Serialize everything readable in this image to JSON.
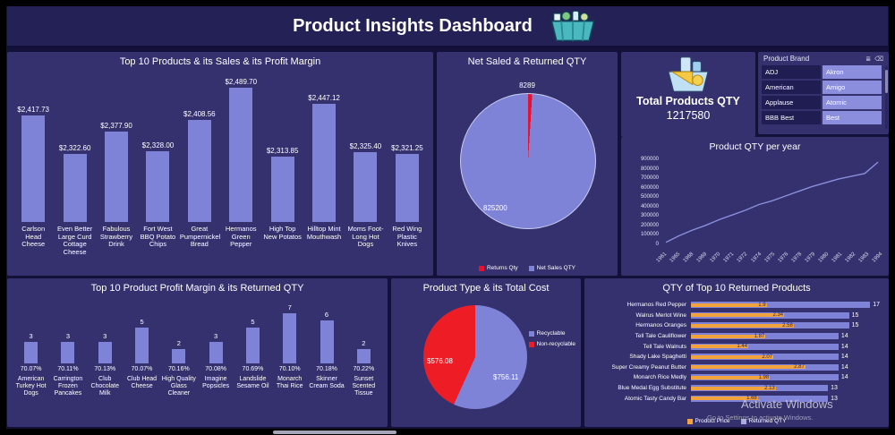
{
  "header": {
    "title": "Product Insights Dashboard"
  },
  "kpi": {
    "label": "Total Products QTY",
    "value": "1217580"
  },
  "slicer": {
    "title": "Product Brand",
    "items": [
      {
        "label": "ADJ",
        "selected": false
      },
      {
        "label": "Akron",
        "selected": true
      },
      {
        "label": "American",
        "selected": false
      },
      {
        "label": "Amigo",
        "selected": true
      },
      {
        "label": "Applause",
        "selected": false
      },
      {
        "label": "Atomic",
        "selected": true
      },
      {
        "label": "BBB Best",
        "selected": false
      },
      {
        "label": "Best",
        "selected": true
      }
    ]
  },
  "watermark": {
    "line1": "Activate Windows",
    "line2": "Go to Settings to activate Windows."
  },
  "colors": {
    "accent_bar": "#7e83d7",
    "red": "#e8112d",
    "orange": "#f2a33c",
    "panel": "#34316e",
    "background": "#13113a"
  },
  "chart_data": [
    {
      "id": "sales-by-product",
      "type": "bar",
      "title": "Top 10 Products & its Sales & its Profit Margin",
      "categories": [
        "Carlson Head Cheese",
        "Even Better Large Curd Cottage Cheese",
        "Fabulous Strawberry Drink",
        "Fort West BBQ Potato Chips",
        "Great Pumpernickel Bread",
        "Hermanos Green Pepper",
        "High Top New Potatos",
        "Hilltop Mint Mouthwash",
        "Moms Foot-Long Hot Dogs",
        "Red Wing Plastic Knives"
      ],
      "values": [
        2417.73,
        2322.6,
        2377.9,
        2328.0,
        2408.56,
        2489.7,
        2313.85,
        2447.12,
        2325.4,
        2321.25
      ],
      "labels": [
        "$2,417.73",
        "$2,322.60",
        "$2,377.90",
        "$2,328.00",
        "$2,408.56",
        "$2,489.70",
        "$2,313.85",
        "$2,447.12",
        "$2,325.40",
        "$2,321.25"
      ],
      "ylim": [
        2150,
        2500
      ],
      "bar_color": "#7e83d7"
    },
    {
      "id": "net-sales-returns",
      "type": "pie",
      "title": "Net Saled & Returned QTY",
      "slices": [
        {
          "label": "Returns Qty",
          "value": 8289,
          "label_text": "8289",
          "color": "#e8112d"
        },
        {
          "label": "Net Sales QTY",
          "value": 825200,
          "label_text": "825200",
          "color": "#7e83d7"
        }
      ],
      "legend": [
        {
          "label": "Returns Qty",
          "color": "#e8112d"
        },
        {
          "label": "Net Sales QTY",
          "color": "#7e83d7"
        }
      ]
    },
    {
      "id": "qty-per-year",
      "type": "line",
      "title": "Product QTY per year",
      "x": [
        "1961",
        "1965",
        "1968",
        "1969",
        "1970",
        "1971",
        "1972",
        "1974",
        "1975",
        "1976",
        "1978",
        "1979",
        "1980",
        "1981",
        "1982",
        "1983",
        "1994"
      ],
      "values": [
        30000,
        100000,
        160000,
        210000,
        270000,
        320000,
        370000,
        430000,
        470000,
        520000,
        570000,
        620000,
        660000,
        700000,
        730000,
        760000,
        880000
      ],
      "ylim": [
        0,
        900000
      ],
      "yticks": [
        "0",
        "100000",
        "200000",
        "300000",
        "400000",
        "500000",
        "600000",
        "700000",
        "800000",
        "900000"
      ],
      "line_color": "#8a8edd"
    },
    {
      "id": "margin-returns",
      "type": "bar",
      "title": "Top 10 Product Profit Margin & its Returned QTY",
      "categories": [
        "American Turkey Hot Dogs",
        "Carrington Frozen Pancakes",
        "Club Chocolate Milk",
        "Club Head Cheese",
        "High Quality Glass Cleaner",
        "Imagine Popsicles",
        "Landslide Sesame Oil",
        "Monarch Thai Rice",
        "Skinner Cream Soda",
        "Sunset Scented Tissue"
      ],
      "values": [
        3,
        3,
        3,
        5,
        2,
        3,
        5,
        7,
        6,
        2
      ],
      "labels": [
        "3",
        "3",
        "3",
        "5",
        "2",
        "3",
        "5",
        "7",
        "6",
        "2"
      ],
      "base_labels": [
        "70.07%",
        "70.11%",
        "70.13%",
        "70.07%",
        "70.16%",
        "70.08%",
        "70.69%",
        "70.10%",
        "70.18%",
        "70.22%"
      ],
      "ylim": [
        0,
        7.5
      ],
      "bar_color": "#7e83d7"
    },
    {
      "id": "product-type-cost",
      "type": "pie",
      "title": "Product Type & its Total Cost",
      "slices": [
        {
          "label": "Recyclable",
          "value": 756.11,
          "label_text": "$756.11",
          "color": "#7e83d7"
        },
        {
          "label": "Non-recyclable",
          "value": 576.08,
          "label_text": "$576.08",
          "color": "#ee1c25"
        }
      ],
      "legend": [
        {
          "label": "Recyclable",
          "color": "#7e83d7"
        },
        {
          "label": "Non-recyclable",
          "color": "#ee1c25"
        }
      ]
    },
    {
      "id": "returned-products",
      "type": "hbar",
      "title": "QTY of Top 10 Returned Products",
      "qty_max": 17,
      "price_max": 4.5,
      "rows": [
        {
          "label": "Hermanos Red Pepper",
          "price": 1.9,
          "price_label": "1.9",
          "qty": 17
        },
        {
          "label": "Walrus Merlot Wine",
          "price": 2.34,
          "price_label": "2.34",
          "qty": 15
        },
        {
          "label": "Hermanos Oranges",
          "price": 2.58,
          "price_label": "2.58",
          "qty": 15
        },
        {
          "label": "Tell Tale Cauliflower",
          "price": 1.87,
          "price_label": "1.87",
          "qty": 14
        },
        {
          "label": "Tell Tale Walnuts",
          "price": 1.44,
          "price_label": "1.44",
          "qty": 14
        },
        {
          "label": "Shady Lake Spaghetti",
          "price": 2.07,
          "price_label": "2.07",
          "qty": 14
        },
        {
          "label": "Super Creamy Peanut Butter",
          "price": 2.87,
          "price_label": "2.87",
          "qty": 14
        },
        {
          "label": "Monarch Rice Medly",
          "price": 1.98,
          "price_label": "1.98",
          "qty": 14
        },
        {
          "label": "Blue Medal Egg Substitute",
          "price": 2.13,
          "price_label": "2.13",
          "qty": 13
        },
        {
          "label": "Atomic Tasty Candy Bar",
          "price": 1.68,
          "price_label": "1.68",
          "qty": 13
        }
      ],
      "legend": [
        {
          "label": "Product Price",
          "color": "#f2a33c"
        },
        {
          "label": "Returned QTY",
          "color": "#a9adde"
        }
      ]
    }
  ]
}
